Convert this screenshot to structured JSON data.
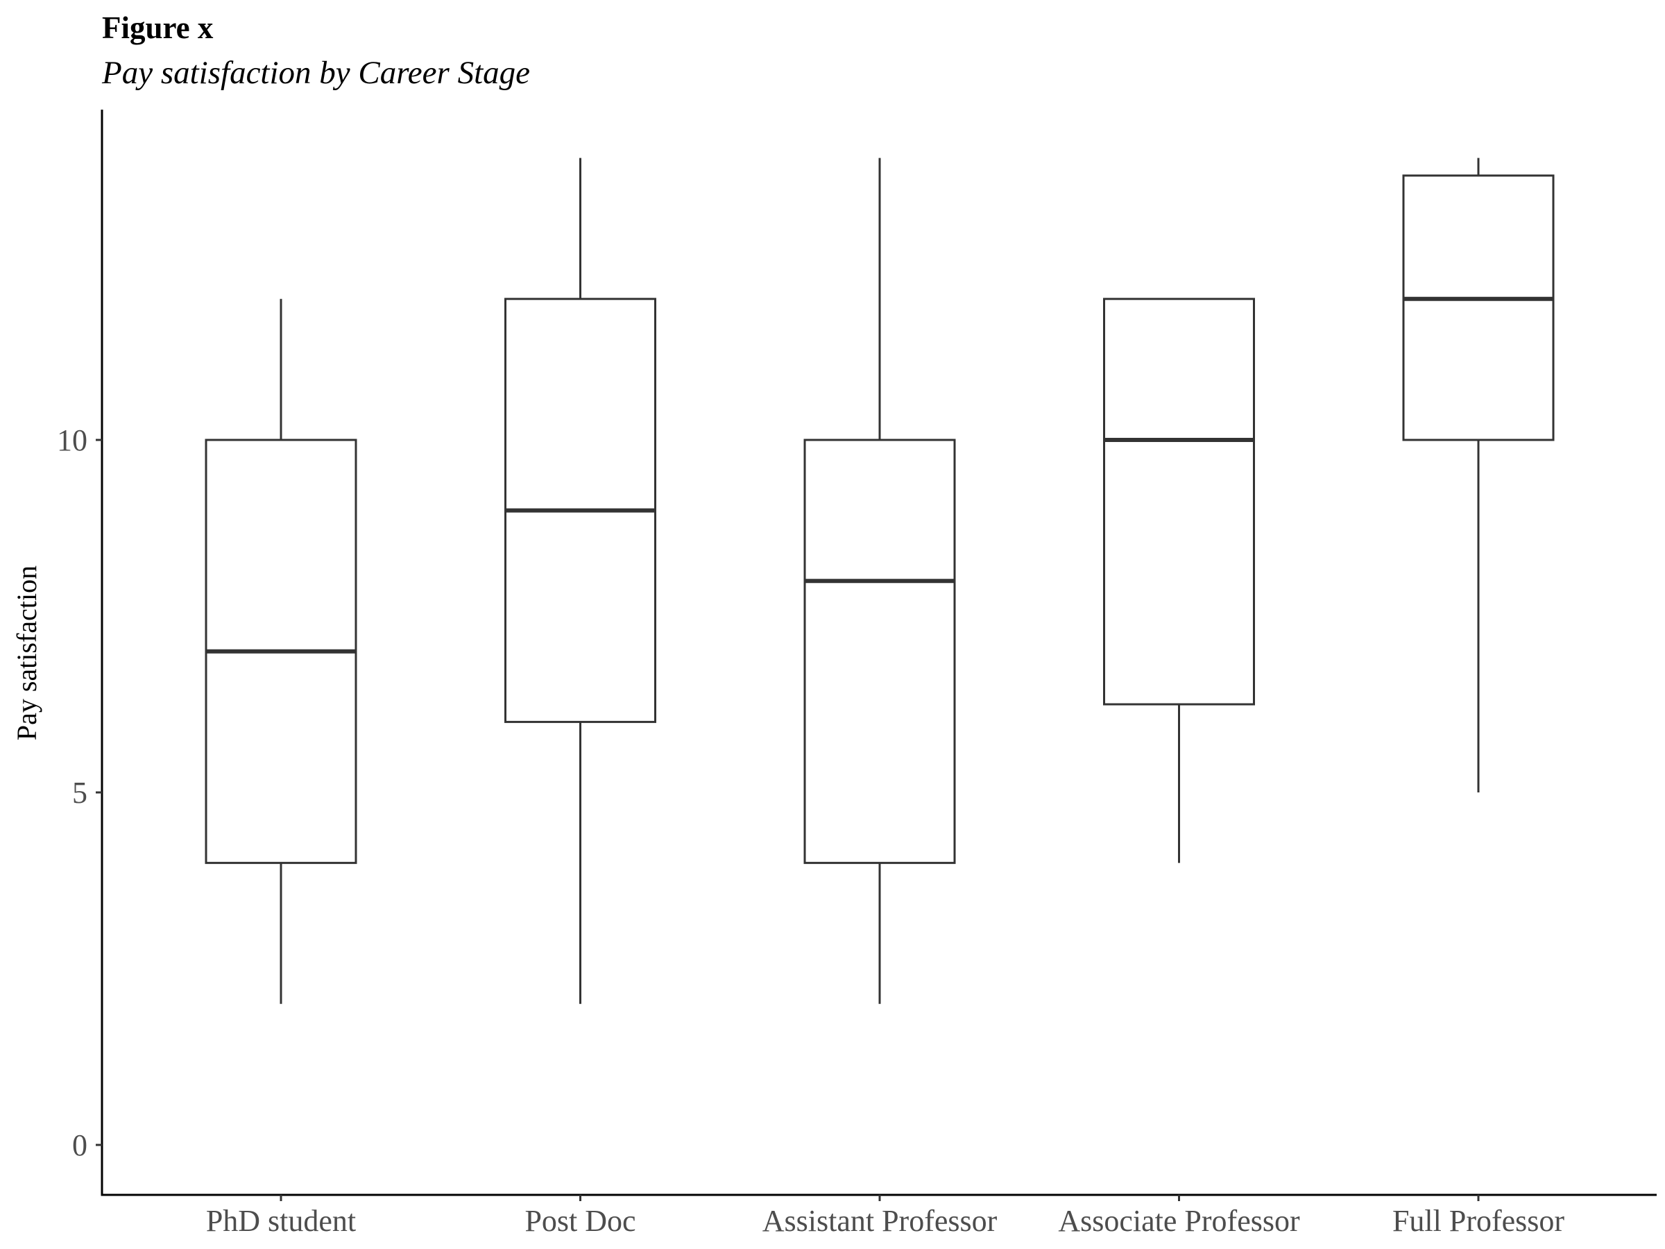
{
  "figure": {
    "label": "Figure x",
    "title": "Pay satisfaction by Career Stage"
  },
  "chart_data": {
    "type": "boxplot",
    "ylabel": "Pay satisfaction",
    "xlabel": "",
    "ylim": [
      -0.7,
      14.7
    ],
    "yticks": [
      0,
      5,
      10
    ],
    "grid": false,
    "categories": [
      "PhD student",
      "Post Doc",
      "Assistant Professor",
      "Associate Professor",
      "Full Professor"
    ],
    "boxes": [
      {
        "category": "PhD student",
        "min": 2,
        "q1": 4,
        "median": 7,
        "q3": 10,
        "max": 12
      },
      {
        "category": "Post Doc",
        "min": 2,
        "q1": 6,
        "median": 9,
        "q3": 12,
        "max": 14
      },
      {
        "category": "Assistant Professor",
        "min": 2,
        "q1": 4,
        "median": 8,
        "q3": 10,
        "max": 14
      },
      {
        "category": "Associate Professor",
        "min": 4,
        "q1": 6.25,
        "median": 10,
        "q3": 12,
        "max": 12
      },
      {
        "category": "Full Professor",
        "min": 5,
        "q1": 10,
        "median": 12,
        "q3": 13.75,
        "max": 14
      }
    ],
    "colors": {
      "box_stroke": "#333333",
      "axis": "#000000",
      "tick_label": "#4d4d4d"
    }
  }
}
